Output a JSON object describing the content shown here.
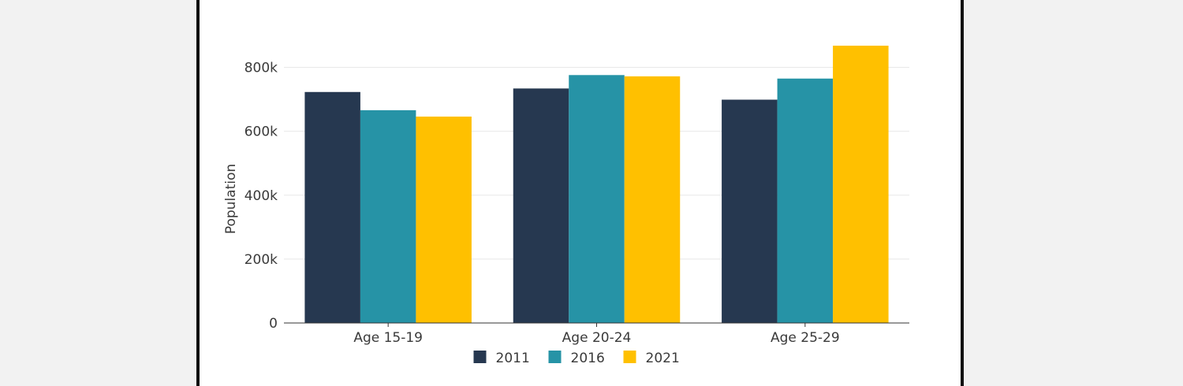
{
  "colors": {
    "page_background": "#f2f2f2",
    "panel_background": "#ffffff",
    "gridline": "#e8e8e8",
    "axis": "#333333"
  },
  "chart_data": {
    "type": "bar",
    "title": "",
    "xlabel": "",
    "ylabel": "Population",
    "categories": [
      "Age 15-19",
      "Age 20-24",
      "Age 25-29"
    ],
    "series": [
      {
        "name": "2011",
        "color": "#263850",
        "values": [
          723000,
          734000,
          699000
        ]
      },
      {
        "name": "2016",
        "color": "#2693a6",
        "values": [
          666000,
          776000,
          765000
        ]
      },
      {
        "name": "2021",
        "color": "#ffc000",
        "values": [
          646000,
          772000,
          868000
        ]
      }
    ],
    "ylim": [
      0,
      900000
    ],
    "yticks": [
      0,
      200000,
      400000,
      600000,
      800000
    ],
    "ytick_labels": [
      "0",
      "200k",
      "400k",
      "600k",
      "800k"
    ],
    "grid": true,
    "legend_position": "bottom"
  }
}
